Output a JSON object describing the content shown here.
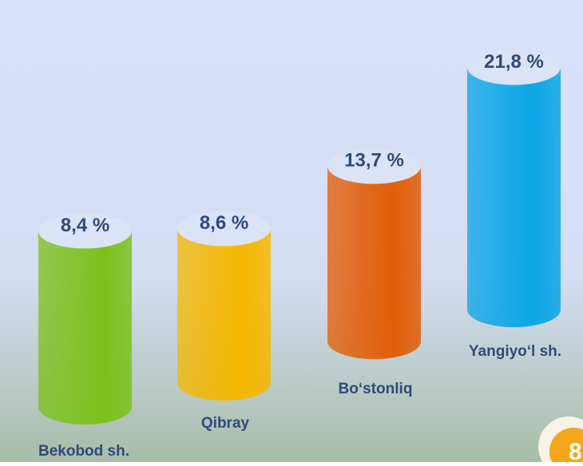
{
  "chart_data": {
    "type": "cylinder",
    "categories": [
      "Bekobod sh.",
      "Qibray",
      "Bo‘stonliq",
      "Yangiyo‘l sh."
    ],
    "values": [
      8.4,
      8.6,
      13.7,
      21.8
    ],
    "value_labels": [
      "8,4 %",
      "8,6 %",
      "13,7 %",
      "21,8 %"
    ],
    "colors": [
      "#7cc11c",
      "#f6b800",
      "#e25d08",
      "#0aa6e6"
    ]
  },
  "logo": "8"
}
